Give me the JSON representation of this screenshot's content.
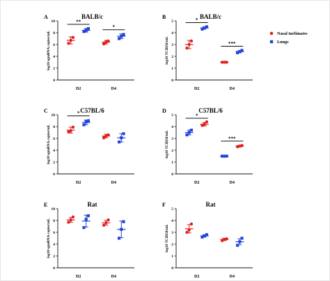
{
  "colors": {
    "nasal": "#e02020",
    "lungs": "#2244d8",
    "axis": "#111111"
  },
  "legend": [
    {
      "name": "Nasal turbinates",
      "marker": "circle",
      "color": "#e02020"
    },
    {
      "name": "Lungs",
      "marker": "square",
      "color": "#2244d8"
    }
  ],
  "chart_data": [
    {
      "id": "A",
      "panel_label": "A",
      "type": "scatter",
      "title": "BALB/c",
      "ylabel": "log10 sgmRNA copies/mL",
      "ylim": [
        0,
        10
      ],
      "yticks": [
        0,
        2,
        4,
        6,
        8,
        10
      ],
      "categories": [
        "D2",
        "D4"
      ],
      "series": [
        {
          "name": "Nasal turbinates",
          "points": [
            [
              6.2,
              6.7,
              7.2
            ],
            [
              6.1,
              6.4,
              6.6
            ]
          ],
          "mean": [
            6.7,
            6.4
          ],
          "err": [
            0.6,
            0.3
          ]
        },
        {
          "name": "Lungs",
          "points": [
            [
              8.2,
              8.4,
              8.7
            ],
            [
              7.0,
              7.4,
              7.7
            ]
          ],
          "mean": [
            8.4,
            7.4
          ],
          "err": [
            0.3,
            0.4
          ]
        }
      ],
      "significance": [
        "**",
        "*"
      ]
    },
    {
      "id": "B",
      "panel_label": "B",
      "type": "scatter",
      "title": "BALB/c",
      "ylabel": "log10 TCID50/mL",
      "ylim": [
        0,
        5
      ],
      "yticks": [
        0,
        1,
        2,
        3,
        4,
        5
      ],
      "categories": [
        "D2",
        "D4"
      ],
      "series": [
        {
          "name": "Nasal turbinates",
          "points": [
            [
              2.7,
              3.0,
              3.3
            ],
            [
              1.5,
              1.5,
              1.5
            ]
          ],
          "mean": [
            3.0,
            1.5
          ],
          "err": [
            0.35,
            0.0
          ]
        },
        {
          "name": "Lungs",
          "points": [
            [
              4.3,
              4.4,
              4.5
            ],
            [
              2.3,
              2.4,
              2.5
            ]
          ],
          "mean": [
            4.4,
            2.4
          ],
          "err": [
            0.1,
            0.1
          ]
        }
      ],
      "significance": [
        "*",
        "***"
      ]
    },
    {
      "id": "C",
      "panel_label": "C",
      "type": "scatter",
      "title": "C57BL/6",
      "ylabel": "log10 sgmRNA copies/mL",
      "ylim": [
        0,
        10
      ],
      "yticks": [
        0,
        2,
        4,
        6,
        8,
        10
      ],
      "categories": [
        "D2",
        "D4"
      ],
      "series": [
        {
          "name": "Nasal turbinates",
          "points": [
            [
              7.1,
              7.3,
              7.9
            ],
            [
              6.1,
              6.4,
              6.6
            ]
          ],
          "mean": [
            7.4,
            6.4
          ],
          "err": [
            0.5,
            0.3
          ]
        },
        {
          "name": "Lungs",
          "points": [
            [
              8.3,
              8.8,
              9.0
            ],
            [
              5.4,
              6.1,
              6.8
            ]
          ],
          "mean": [
            8.7,
            6.1
          ],
          "err": [
            0.4,
            0.7
          ]
        }
      ],
      "significance": [
        "*",
        ""
      ]
    },
    {
      "id": "D",
      "panel_label": "D",
      "type": "scatter",
      "title": "C57BL/6",
      "ylabel": "log10 TCID50/mL",
      "ylim": [
        0,
        5
      ],
      "yticks": [
        0,
        1,
        2,
        3,
        4,
        5
      ],
      "categories": [
        "D2",
        "D4"
      ],
      "series": [
        {
          "name": "Lungs",
          "points": [
            [
              3.3,
              3.5,
              3.7
            ],
            [
              1.5,
              1.5,
              1.5
            ]
          ],
          "mean": [
            3.5,
            1.5
          ],
          "err": [
            0.2,
            0.0
          ]
        },
        {
          "name": "Nasal turbinates",
          "points": [
            [
              4.1,
              4.2,
              4.4
            ],
            [
              2.3,
              2.35,
              2.4
            ]
          ],
          "mean": [
            4.2,
            2.35
          ],
          "err": [
            0.15,
            0.07
          ]
        }
      ],
      "significance": [
        "*",
        "***"
      ]
    },
    {
      "id": "E",
      "panel_label": "E",
      "type": "scatter",
      "title": "Rat",
      "ylabel": "log10 sgmRNA copies/mL",
      "ylim": [
        0,
        10
      ],
      "yticks": [
        0,
        2,
        4,
        6,
        8,
        10
      ],
      "categories": [
        "D2",
        "D4"
      ],
      "series": [
        {
          "name": "Nasal turbinates",
          "points": [
            [
              7.7,
              8.1,
              8.6
            ],
            [
              7.2,
              7.6,
              8.1
            ]
          ],
          "mean": [
            8.1,
            7.6
          ],
          "err": [
            0.4,
            0.4
          ]
        },
        {
          "name": "Lungs",
          "points": [
            [
              6.8,
              8.2,
              8.8
            ],
            [
              5.0,
              6.5,
              7.8
            ]
          ],
          "mean": [
            7.9,
            6.5
          ],
          "err": [
            1.0,
            1.4
          ]
        }
      ],
      "significance": [
        "",
        ""
      ]
    },
    {
      "id": "F",
      "panel_label": "F",
      "type": "scatter",
      "title": "Rat",
      "ylabel": "log10 TCID50/mL",
      "ylim": [
        0,
        5
      ],
      "yticks": [
        0,
        1,
        2,
        3,
        4,
        5
      ],
      "categories": [
        "D2",
        "D4"
      ],
      "series": [
        {
          "name": "Nasal turbinates",
          "points": [
            [
              3.0,
              3.2,
              3.7
            ],
            [
              2.3,
              2.4,
              2.45
            ]
          ],
          "mean": [
            3.3,
            2.4
          ],
          "err": [
            0.35,
            0.1
          ]
        },
        {
          "name": "Lungs",
          "points": [
            [
              2.6,
              2.7,
              2.8
            ],
            [
              1.9,
              2.2,
              2.5
            ]
          ],
          "mean": [
            2.7,
            2.2
          ],
          "err": [
            0.1,
            0.25
          ]
        }
      ],
      "significance": [
        "",
        ""
      ]
    }
  ]
}
